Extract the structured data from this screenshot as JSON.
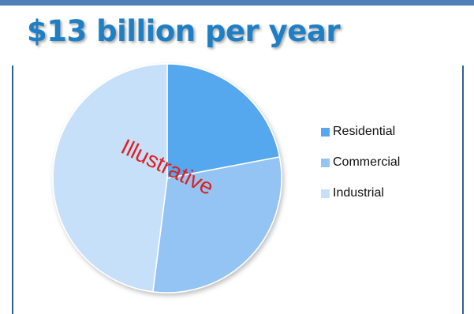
{
  "title": "$13 billion per year",
  "watermark": "Illustrative",
  "colors": {
    "bar": "#4f7fb8",
    "frame": "#2f5f9a",
    "title": "#1f7fc4",
    "watermark": "#e02020"
  },
  "chart_data": {
    "type": "pie",
    "title": "",
    "legend_position": "right",
    "slices": [
      {
        "label": "Residential",
        "value": 22,
        "color": "#55a7ee"
      },
      {
        "label": "Commercial",
        "value": 30,
        "color": "#94c4f3"
      },
      {
        "label": "Industrial",
        "value": 48,
        "color": "#c7e0f9"
      }
    ]
  }
}
